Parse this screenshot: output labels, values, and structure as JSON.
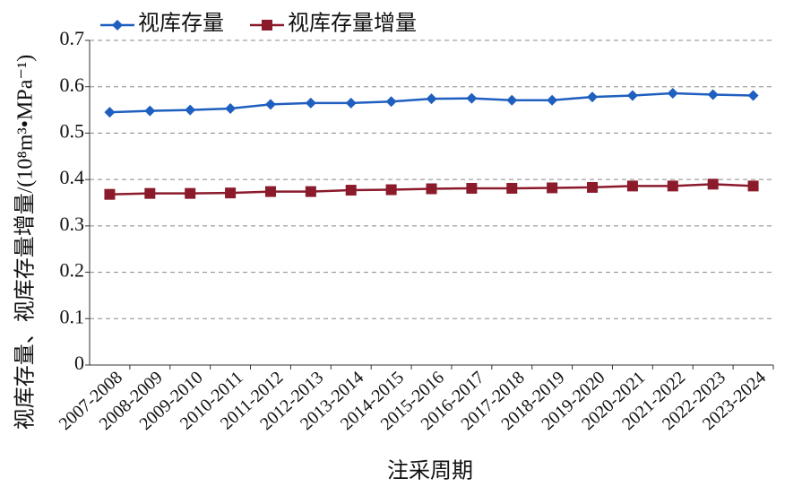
{
  "chart_data": {
    "type": "line",
    "x_label": "注采周期",
    "y_label": "视库存量、视库存量增量/(10⁸m³•MPa⁻¹)",
    "categories": [
      "2007-2008",
      "2008-2009",
      "2009-2010",
      "2010-2011",
      "2011-2012",
      "2012-2013",
      "2013-2014",
      "2014-2015",
      "2015-2016",
      "2016-2017",
      "2017-2018",
      "2018-2019",
      "2019-2020",
      "2020-2021",
      "2021-2022",
      "2022-2023",
      "2023-2024"
    ],
    "series": [
      {
        "name": "视库存量",
        "color": "#1f5fbf",
        "marker": "diamond",
        "values": [
          0.545,
          0.548,
          0.55,
          0.553,
          0.562,
          0.565,
          0.565,
          0.568,
          0.574,
          0.575,
          0.571,
          0.571,
          0.578,
          0.581,
          0.586,
          0.583,
          0.581
        ]
      },
      {
        "name": "视库存量增量",
        "color": "#8b1a2b",
        "marker": "square",
        "values": [
          0.368,
          0.37,
          0.37,
          0.371,
          0.374,
          0.374,
          0.377,
          0.378,
          0.38,
          0.381,
          0.381,
          0.382,
          0.383,
          0.386,
          0.386,
          0.39,
          0.386
        ]
      }
    ],
    "ylim": [
      0,
      0.7
    ],
    "yticks": [
      0,
      0.1,
      0.2,
      0.3,
      0.4,
      0.5,
      0.6,
      0.7
    ],
    "grid": true
  }
}
